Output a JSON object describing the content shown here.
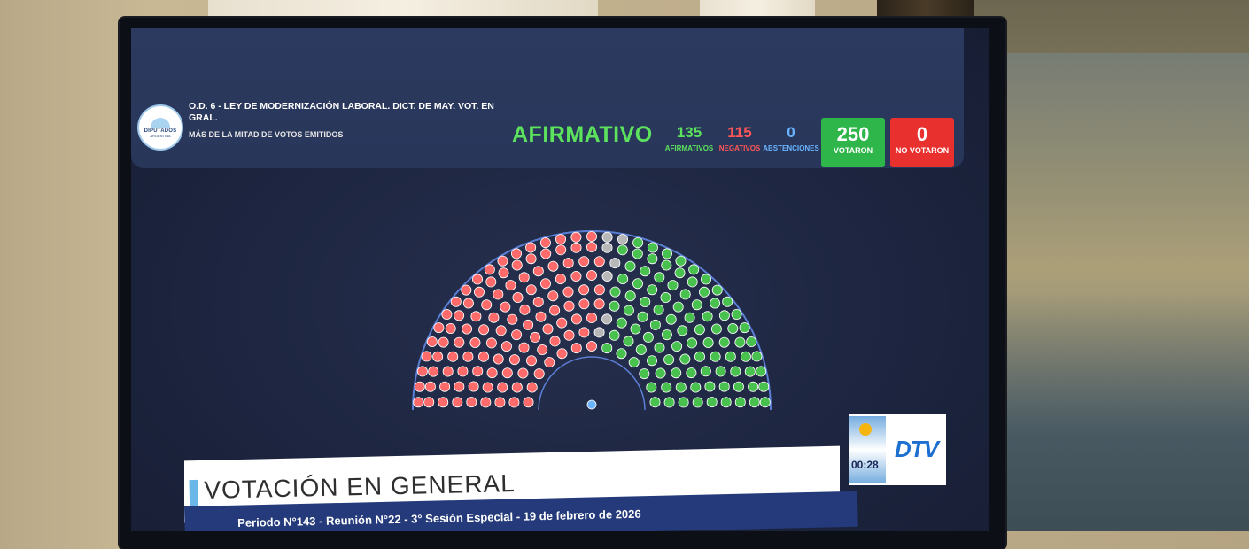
{
  "header": {
    "logo_text": "DIPUTADOS",
    "logo_sub": "ARGENTINA",
    "title": "O.D. 6 - LEY DE MODERNIZACIÓN LABORAL. DICT. DE MAY. VOT. EN GRAL.",
    "subtitle": "MÁS DE LA MITAD DE VOTOS EMITIDOS",
    "result": "AFIRMATIVO"
  },
  "counts": {
    "afirmativos": {
      "value": "135",
      "label": "AFIRMATIVOS",
      "color": "#5ce25c"
    },
    "negativos": {
      "value": "115",
      "label": "NEGATIVOS",
      "color": "#ff5757"
    },
    "abstenciones": {
      "value": "0",
      "label": "ABSTENCIONES",
      "color": "#6ab4ff"
    },
    "votaron": {
      "value": "250",
      "label": "VOTARON",
      "color": "#2fb64a"
    },
    "no_votaron": {
      "value": "0",
      "label": "NO VOTARON",
      "color": "#e8312f"
    }
  },
  "hemicycle": {
    "afirmativos": 135,
    "negativos": 115,
    "ausentes": 7,
    "colors": {
      "afirmativo": "#49c14f",
      "negativo": "#ff6b6b",
      "ausente": "#b8b8b8"
    }
  },
  "banner": {
    "title": "VOTACIÓN EN GENERAL",
    "footer": "Periodo N°143 - Reunión N°22 - 3° Sesión Especial - 19 de febrero de 2026"
  },
  "badge": {
    "time": "00:28",
    "logo": "DTV"
  }
}
